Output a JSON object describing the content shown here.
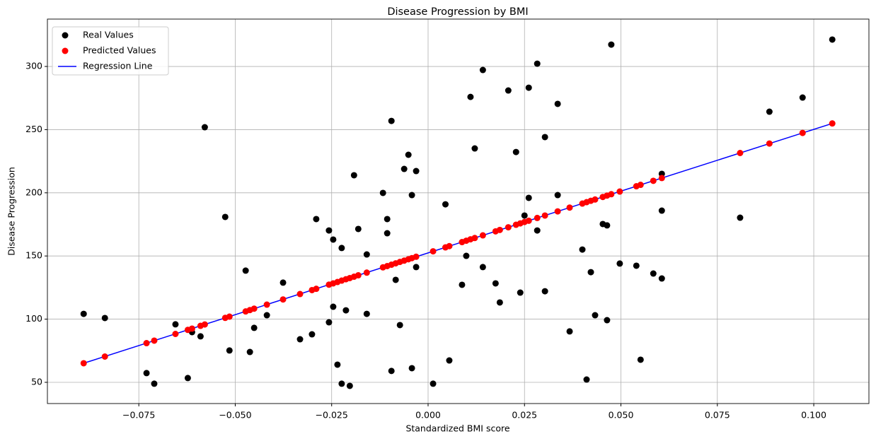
{
  "chart_data": {
    "type": "scatter",
    "title": "Disease Progression by BMI",
    "x_label": "Standardized BMI score",
    "y_label": "Disease Progression",
    "xlim": [
      -0.0987,
      0.1143
    ],
    "ylim": [
      33.2,
      337.5
    ],
    "xticks": [
      {
        "value": -0.075,
        "label": "−0.075"
      },
      {
        "value": -0.05,
        "label": "−0.050"
      },
      {
        "value": -0.025,
        "label": "−0.025"
      },
      {
        "value": 0,
        "label": "0.000"
      },
      {
        "value": 0.025,
        "label": "0.025"
      },
      {
        "value": 0.05,
        "label": "0.050"
      },
      {
        "value": 0.075,
        "label": "0.075"
      },
      {
        "value": 0.1,
        "label": "0.100"
      }
    ],
    "yticks": [
      50,
      100,
      150,
      200,
      250,
      300
    ],
    "grid": true,
    "legend": "upper left",
    "series": [
      {
        "name": "Real Values",
        "kind": "scatter",
        "color": "#000000",
        "x": [
          -0.0893,
          -0.0838,
          -0.073,
          -0.071,
          -0.0655,
          -0.0623,
          -0.0612,
          -0.059,
          -0.0579,
          -0.0526,
          -0.0515,
          -0.0473,
          -0.0462,
          -0.0451,
          -0.0418,
          -0.0376,
          -0.0332,
          -0.0301,
          -0.029,
          -0.0257,
          -0.0257,
          -0.0246,
          -0.0246,
          -0.0235,
          -0.0224,
          -0.0224,
          -0.0213,
          -0.0203,
          -0.0192,
          -0.0181,
          -0.0159,
          -0.0159,
          -0.0117,
          -0.0106,
          -0.0106,
          -0.0095,
          -0.0095,
          -0.0084,
          -0.0073,
          -0.0062,
          -0.0051,
          -0.0042,
          -0.0042,
          -0.0031,
          -0.0031,
          0.0013,
          0.0045,
          0.0055,
          0.0088,
          0.0099,
          0.011,
          0.0121,
          0.0142,
          0.0142,
          0.0175,
          0.0186,
          0.0208,
          0.0228,
          0.0239,
          0.025,
          0.0261,
          0.0261,
          0.0283,
          0.0283,
          0.0303,
          0.0303,
          0.0336,
          0.0336,
          0.0367,
          0.04,
          0.0411,
          0.0422,
          0.0433,
          0.0453,
          0.0464,
          0.0464,
          0.0475,
          0.0497,
          0.054,
          0.0551,
          0.0584,
          0.0606,
          0.0606,
          0.0606,
          0.0809,
          0.0885,
          0.0971,
          0.1048
        ],
        "y": [
          104.2,
          100.9,
          57.3,
          48.9,
          95.9,
          53.4,
          89.7,
          86.4,
          251.9,
          180.9,
          75.2,
          138.4,
          74.0,
          93.1,
          103.1,
          128.9,
          84.1,
          88.0,
          179.2,
          170.2,
          97.5,
          163.0,
          109.8,
          64.0,
          156.3,
          48.9,
          107.0,
          47.2,
          213.9,
          171.4,
          151.2,
          104.2,
          199.9,
          179.2,
          168.0,
          256.9,
          59.0,
          131.1,
          95.3,
          218.9,
          230.1,
          198.2,
          61.2,
          217.2,
          141.2,
          48.9,
          190.9,
          67.3,
          127.2,
          150.1,
          275.9,
          235.1,
          141.2,
          297.2,
          128.3,
          113.2,
          281.0,
          232.3,
          121.0,
          182.0,
          283.2,
          196.0,
          302.2,
          170.2,
          244.1,
          122.1,
          270.4,
          198.2,
          90.3,
          155.1,
          52.2,
          137.2,
          103.1,
          175.3,
          174.2,
          99.2,
          317.3,
          144.0,
          142.3,
          67.9,
          136.1,
          215.0,
          185.9,
          132.2,
          180.3,
          264.2,
          275.4,
          321.3
        ]
      },
      {
        "name": "Predicted Values",
        "kind": "scatter",
        "color": "#ff0000",
        "x": [
          -0.0893,
          -0.0838,
          -0.073,
          -0.071,
          -0.0655,
          -0.0623,
          -0.0612,
          -0.059,
          -0.0579,
          -0.0526,
          -0.0515,
          -0.0473,
          -0.0462,
          -0.0451,
          -0.0418,
          -0.0376,
          -0.0332,
          -0.0301,
          -0.029,
          -0.0257,
          -0.0246,
          -0.0235,
          -0.0224,
          -0.0213,
          -0.0203,
          -0.0192,
          -0.0181,
          -0.0159,
          -0.0117,
          -0.0106,
          -0.0095,
          -0.0084,
          -0.0073,
          -0.0062,
          -0.0051,
          -0.0042,
          -0.0031,
          0.0013,
          0.0045,
          0.0055,
          0.0088,
          0.0099,
          0.011,
          0.0121,
          0.0142,
          0.0175,
          0.0186,
          0.0208,
          0.0228,
          0.0239,
          0.025,
          0.0261,
          0.0283,
          0.0303,
          0.0336,
          0.0367,
          0.04,
          0.0411,
          0.0422,
          0.0433,
          0.0453,
          0.0464,
          0.0475,
          0.0497,
          0.054,
          0.0551,
          0.0584,
          0.0606,
          0.0809,
          0.0885,
          0.0971,
          0.1048
        ],
        "y": [
          65.1,
          70.4,
          81.0,
          83.0,
          88.3,
          91.5,
          92.5,
          94.7,
          95.8,
          101.0,
          102.0,
          106.1,
          107.2,
          108.3,
          111.5,
          115.6,
          119.9,
          123.0,
          124.0,
          127.3,
          128.3,
          129.4,
          130.5,
          131.6,
          132.5,
          133.6,
          134.7,
          136.8,
          141.0,
          142.0,
          143.1,
          144.2,
          145.3,
          146.3,
          147.4,
          148.3,
          149.4,
          153.7,
          156.8,
          157.8,
          161.0,
          162.1,
          163.2,
          164.2,
          166.3,
          169.5,
          170.6,
          172.7,
          174.7,
          175.8,
          176.9,
          177.9,
          180.1,
          182.0,
          185.3,
          188.3,
          191.5,
          192.6,
          193.7,
          194.7,
          196.7,
          197.8,
          198.9,
          201.0,
          205.2,
          206.3,
          209.5,
          211.7,
          231.5,
          239.0,
          247.4,
          254.9
        ]
      },
      {
        "name": "Regression Line",
        "kind": "line",
        "color": "#0000ff",
        "x": [
          -0.0893,
          0.1048
        ],
        "y": [
          65.1,
          254.9
        ]
      }
    ]
  }
}
